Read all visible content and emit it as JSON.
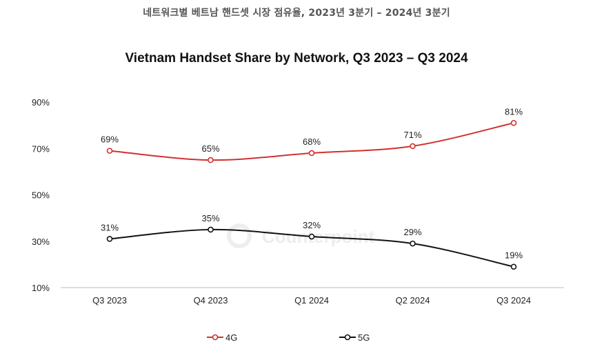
{
  "header": {
    "korean_title": "네트워크별 베트남 핸드셋 시장 점유율, 2023년 3분기 – 2024년 3분기"
  },
  "watermark": {
    "text": "Counterpoint"
  },
  "chart_data": {
    "type": "line",
    "title": "Vietnam Handset Share by Network, Q3 2023 – Q3 2024",
    "xlabel": "",
    "ylabel": "",
    "categories": [
      "Q3 2023",
      "Q4 2023",
      "Q1 2024",
      "Q2 2024",
      "Q3 2024"
    ],
    "yticks": [
      "10%",
      "30%",
      "50%",
      "70%",
      "90%"
    ],
    "ytick_values": [
      10,
      30,
      50,
      70,
      90
    ],
    "ylim": [
      10,
      90
    ],
    "grid": false,
    "legend_position": "bottom",
    "series": [
      {
        "name": "4G",
        "color": "#d32f2f",
        "values": [
          69,
          65,
          68,
          71,
          81
        ],
        "labels": [
          "69%",
          "65%",
          "68%",
          "71%",
          "81%"
        ]
      },
      {
        "name": "5G",
        "color": "#111111",
        "values": [
          31,
          35,
          32,
          29,
          19
        ],
        "labels": [
          "31%",
          "35%",
          "32%",
          "29%",
          "19%"
        ]
      }
    ]
  }
}
